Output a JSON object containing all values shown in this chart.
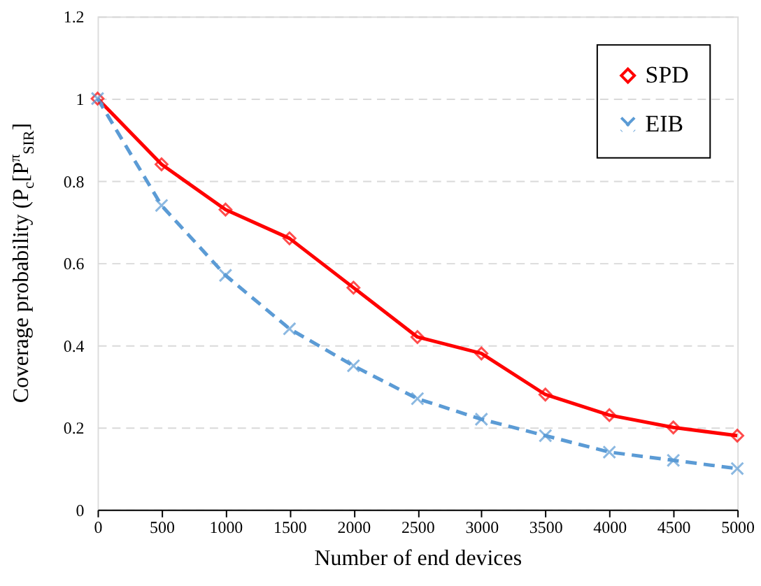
{
  "chart_data": {
    "type": "line",
    "xlabel": "Number of end devices",
    "ylabel": "Coverage probability (P$_{c}$[P$^{π}$$_{SIR}$]",
    "x": [
      0,
      500,
      1000,
      1500,
      2000,
      2500,
      3000,
      3500,
      4000,
      4500,
      5000
    ],
    "series": [
      {
        "name": "SPD",
        "color": "#ff0000",
        "marker": "diamond",
        "line_style": "solid",
        "values": [
          1,
          0.84,
          0.73,
          0.66,
          0.54,
          0.42,
          0.38,
          0.28,
          0.23,
          0.2,
          0.18
        ]
      },
      {
        "name": "EIB",
        "color": "#5b9bd5",
        "marker": "cross",
        "line_style": "dashed",
        "values": [
          1,
          0.74,
          0.57,
          0.44,
          0.35,
          0.27,
          0.22,
          0.18,
          0.14,
          0.12,
          0.1
        ]
      }
    ],
    "xlim": [
      0,
      5000
    ],
    "xticks": [
      0,
      500,
      1000,
      1500,
      2000,
      2500,
      3000,
      3500,
      4000,
      4500,
      5000
    ],
    "ylim": [
      0,
      1.2
    ],
    "yticks": [
      0,
      0.2,
      0.4,
      0.6,
      0.8,
      1,
      1.2
    ],
    "grid": "y",
    "legend": "top right"
  }
}
